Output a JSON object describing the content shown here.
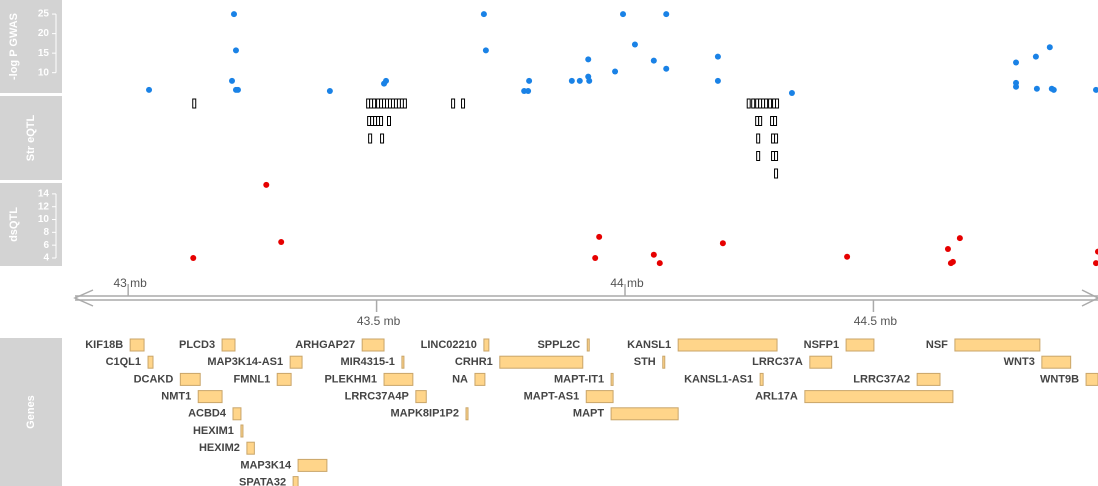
{
  "genome_axis": {
    "xlim": [
      42.893,
      44.952
    ],
    "xticks": [
      {
        "value": 43,
        "label": "43 mb"
      },
      {
        "value": 43.5,
        "label": "43.5 mb"
      },
      {
        "value": 44,
        "label": "44 mb"
      },
      {
        "value": 44.5,
        "label": "44.5 mb"
      }
    ]
  },
  "chart_data": [
    {
      "type": "scatter",
      "title": "-log P GWAS",
      "color": "#1a82e6",
      "ylim": [
        4.8,
        28.6
      ],
      "yticks": [
        10,
        15,
        20,
        25
      ],
      "x": [
        43.042,
        43.213,
        43.217,
        43.209,
        43.217,
        43.221,
        43.406,
        43.515,
        43.519,
        43.716,
        43.72,
        43.797,
        43.805,
        43.807,
        43.893,
        43.909,
        43.926,
        43.926,
        43.928,
        43.98,
        43.996,
        44.02,
        44.058,
        44.083,
        44.083,
        44.187,
        44.187,
        44.336,
        44.787,
        44.787,
        44.787,
        44.827,
        44.855,
        44.829,
        44.859,
        44.863,
        44.948
      ],
      "values": [
        5.6,
        25,
        15.7,
        7.9,
        5.6,
        5.6,
        5.3,
        7.2,
        7.9,
        25,
        15.7,
        5.3,
        5.3,
        7.9,
        7.9,
        7.9,
        9,
        13.4,
        7.9,
        10.3,
        25,
        17.2,
        13.1,
        25,
        11,
        14.1,
        7.9,
        4.8,
        12.6,
        7.4,
        6.4,
        14.1,
        16.5,
        5.9,
        5.9,
        5.6,
        5.6
      ]
    },
    {
      "type": "ticks",
      "title": "Str eQTL",
      "rows": [
        [
          43.133,
          43.483,
          43.489,
          43.495,
          43.503,
          43.509,
          43.515,
          43.521,
          43.527,
          43.533,
          43.539,
          43.545,
          43.551,
          43.557,
          43.654,
          43.674,
          44.249,
          44.258,
          44.266,
          44.272,
          44.278,
          44.284,
          44.292,
          44.3,
          44.306
        ],
        [
          43.485,
          43.491,
          43.497,
          43.503,
          43.509,
          43.525,
          44.266,
          44.272,
          44.296,
          44.302
        ],
        [
          43.487,
          43.511,
          44.268,
          44.298,
          44.304
        ],
        [
          44.268,
          44.298,
          44.304
        ],
        [
          44.304
        ]
      ]
    },
    {
      "type": "scatter",
      "title": "dsQTL",
      "color": "#e60000",
      "ylim": [
        2.75,
        15.7
      ],
      "yticks": [
        4,
        6,
        8,
        10,
        12,
        14
      ],
      "x": [
        43.131,
        43.278,
        43.308,
        43.94,
        43.948,
        44.058,
        44.07,
        44.197,
        44.447,
        44.65,
        44.656,
        44.66,
        44.674,
        44.948,
        44.952
      ],
      "values": [
        4,
        15.4,
        6.5,
        4,
        7.3,
        4.5,
        3.2,
        6.3,
        4.2,
        5.4,
        3.2,
        3.4,
        7.1,
        3.2,
        5
      ]
    },
    {
      "type": "genes",
      "title": "Genes",
      "rows": [
        [
          {
            "name": "KIF18B",
            "start": 43.004,
            "end": 43.032
          },
          {
            "name": "PLCD3",
            "start": 43.189,
            "end": 43.215
          },
          {
            "name": "ARHGAP27",
            "start": 43.471,
            "end": 43.515
          },
          {
            "name": "LINC02210",
            "start": 43.716,
            "end": 43.726
          },
          {
            "name": "SPPL2C",
            "start": 43.924,
            "end": 43.928
          },
          {
            "name": "KANSL1",
            "start": 44.107,
            "end": 44.306
          },
          {
            "name": "NSFP1",
            "start": 44.445,
            "end": 44.501
          },
          {
            "name": "NSF",
            "start": 44.664,
            "end": 44.835
          }
        ],
        [
          {
            "name": "C1QL1",
            "start": 43.04,
            "end": 43.05
          },
          {
            "name": "MAP3K14-AS1",
            "start": 43.326,
            "end": 43.35
          },
          {
            "name": "MIR4315-1",
            "start": 43.551,
            "end": 43.555
          },
          {
            "name": "CRHR1",
            "start": 43.748,
            "end": 43.915
          },
          {
            "name": "STH",
            "start": 44.076,
            "end": 44.08
          },
          {
            "name": "LRRC37A",
            "start": 44.372,
            "end": 44.416
          },
          {
            "name": "WNT3",
            "start": 44.839,
            "end": 44.897
          }
        ],
        [
          {
            "name": "DCAKD",
            "start": 43.105,
            "end": 43.145
          },
          {
            "name": "FMNL1",
            "start": 43.3,
            "end": 43.328
          },
          {
            "name": "PLEKHM1",
            "start": 43.515,
            "end": 43.573
          },
          {
            "name": "NA",
            "start": 43.698,
            "end": 43.718
          },
          {
            "name": "MAPT-IT1",
            "start": 43.972,
            "end": 43.976
          },
          {
            "name": "KANSL1-AS1",
            "start": 44.272,
            "end": 44.278
          },
          {
            "name": "LRRC37A2",
            "start": 44.588,
            "end": 44.634
          },
          {
            "name": "WNT9B",
            "start": 44.928,
            "end": 44.952
          }
        ],
        [
          {
            "name": "NMT1",
            "start": 43.141,
            "end": 43.189
          },
          {
            "name": "LRRC37A4P",
            "start": 43.579,
            "end": 43.6
          },
          {
            "name": "MAPT-AS1",
            "start": 43.922,
            "end": 43.976
          },
          {
            "name": "ARL17A",
            "start": 44.362,
            "end": 44.66
          }
        ],
        [
          {
            "name": "ACBD4",
            "start": 43.211,
            "end": 43.227
          },
          {
            "name": "MAPK8IP1P2",
            "start": 43.68,
            "end": 43.684
          },
          {
            "name": "MAPT",
            "start": 43.972,
            "end": 44.107
          }
        ],
        [
          {
            "name": "HEXIM1",
            "start": 43.227,
            "end": 43.231
          }
        ],
        [
          {
            "name": "HEXIM2",
            "start": 43.239,
            "end": 43.254
          }
        ],
        [
          {
            "name": "MAP3K14",
            "start": 43.342,
            "end": 43.4
          }
        ],
        [
          {
            "name": "SPATA32",
            "start": 43.332,
            "end": 43.342
          }
        ]
      ]
    }
  ]
}
